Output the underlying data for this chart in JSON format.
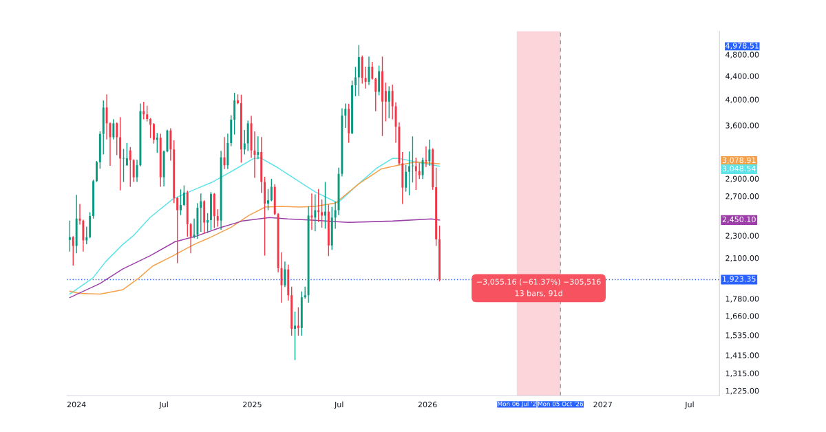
{
  "chart_data": {
    "type": "candlestick",
    "x": [
      "2023-12-18",
      "2023-12-25",
      "2024-01-01",
      "2024-01-08",
      "2024-01-15",
      "2024-01-22",
      "2024-01-29",
      "2024-02-05",
      "2024-02-12",
      "2024-02-19",
      "2024-02-26",
      "2024-03-04",
      "2024-03-11",
      "2024-03-18",
      "2024-03-25",
      "2024-04-01",
      "2024-04-08",
      "2024-04-15",
      "2024-04-22",
      "2024-04-29",
      "2024-05-06",
      "2024-05-13",
      "2024-05-20",
      "2024-05-27",
      "2024-06-03",
      "2024-06-10",
      "2024-06-17",
      "2024-06-24",
      "2024-07-01",
      "2024-07-08",
      "2024-07-15",
      "2024-07-22",
      "2024-07-29",
      "2024-08-05",
      "2024-08-12",
      "2024-08-19",
      "2024-08-26",
      "2024-09-02",
      "2024-09-09",
      "2024-09-16",
      "2024-09-23",
      "2024-09-30",
      "2024-10-07",
      "2024-10-14",
      "2024-10-21",
      "2024-10-28",
      "2024-11-04",
      "2024-11-11",
      "2024-11-18",
      "2024-11-25",
      "2024-12-02",
      "2024-12-09",
      "2024-12-16",
      "2024-12-23",
      "2024-12-30",
      "2025-01-06",
      "2025-01-13",
      "2025-01-20",
      "2025-01-27",
      "2025-02-03",
      "2025-02-10",
      "2025-02-17",
      "2025-02-24",
      "2025-03-03",
      "2025-03-10",
      "2025-03-17",
      "2025-03-24",
      "2025-03-31",
      "2025-04-07",
      "2025-04-14",
      "2025-04-21",
      "2025-04-28",
      "2025-05-05",
      "2025-05-12",
      "2025-05-19",
      "2025-05-26",
      "2025-06-02",
      "2025-06-09",
      "2025-06-16",
      "2025-06-23",
      "2025-06-30",
      "2025-07-07",
      "2025-07-14",
      "2025-07-21",
      "2025-07-28",
      "2025-08-04",
      "2025-08-11",
      "2025-08-18",
      "2025-08-25",
      "2025-09-01",
      "2025-09-08",
      "2025-09-15",
      "2025-09-22",
      "2025-09-29",
      "2025-10-06",
      "2025-10-13",
      "2025-10-20",
      "2025-10-27",
      "2025-11-03",
      "2025-11-10",
      "2025-11-17",
      "2025-11-24",
      "2025-12-01",
      "2025-12-08",
      "2025-12-15",
      "2025-12-22",
      "2025-12-29",
      "2026-01-05",
      "2026-01-12",
      "2026-01-19",
      "2026-01-26"
    ],
    "ohlc": [
      [
        2260,
        2440,
        2160,
        2285
      ],
      [
        2285,
        2290,
        2040,
        2205
      ],
      [
        2205,
        2710,
        2145,
        2465
      ],
      [
        2465,
        2610,
        2410,
        2445
      ],
      [
        2445,
        2450,
        2160,
        2255
      ],
      [
        2255,
        2380,
        2225,
        2285
      ],
      [
        2285,
        2525,
        2280,
        2490
      ],
      [
        2490,
        2880,
        2470,
        2870
      ],
      [
        2870,
        3110,
        2865,
        3100
      ],
      [
        3100,
        3505,
        3025,
        3475
      ],
      [
        3475,
        3975,
        3205,
        3870
      ],
      [
        3870,
        4075,
        3405,
        3630
      ],
      [
        3630,
        3635,
        3060,
        3430
      ],
      [
        3430,
        3685,
        3405,
        3630
      ],
      [
        3630,
        3635,
        3195,
        3430
      ],
      [
        3430,
        3715,
        2770,
        3145
      ],
      [
        3145,
        3265,
        2865,
        3150
      ],
      [
        3060,
        3345,
        3060,
        3150
      ],
      [
        3250,
        3290,
        2810,
        3125
      ],
      [
        3125,
        3130,
        2865,
        2915
      ],
      [
        2915,
        3125,
        2865,
        3060
      ],
      [
        3060,
        3925,
        3055,
        3815
      ],
      [
        3815,
        3955,
        3695,
        3765
      ],
      [
        3765,
        3890,
        3665,
        3695
      ],
      [
        3695,
        3700,
        3425,
        3610
      ],
      [
        3620,
        3625,
        3350,
        3395
      ],
      [
        3395,
        3485,
        3225,
        3425
      ],
      [
        3425,
        3475,
        2810,
        2915
      ],
      [
        2915,
        3245,
        2815,
        3240
      ],
      [
        3240,
        3530,
        3235,
        3525
      ],
      [
        3525,
        3550,
        3125,
        3265
      ],
      [
        3265,
        3380,
        2630,
        2680
      ],
      [
        2680,
        2685,
        2060,
        2550
      ],
      [
        2550,
        2770,
        2505,
        2605
      ],
      [
        2605,
        2815,
        2600,
        2740
      ],
      [
        2740,
        2755,
        2295,
        2410
      ],
      [
        2410,
        2415,
        2145,
        2290
      ],
      [
        2290,
        2460,
        2280,
        2310
      ],
      [
        2310,
        2620,
        2275,
        2575
      ],
      [
        2575,
        2725,
        2340,
        2645
      ],
      [
        2645,
        2650,
        2325,
        2425
      ],
      [
        2425,
        2515,
        2330,
        2450
      ],
      [
        2450,
        2740,
        2360,
        2725
      ],
      [
        2725,
        2730,
        2375,
        2490
      ],
      [
        2490,
        2555,
        2390,
        2445
      ],
      [
        2445,
        3240,
        2360,
        3160
      ],
      [
        3160,
        3425,
        3020,
        3060
      ],
      [
        3060,
        3475,
        3020,
        3350
      ],
      [
        3350,
        3745,
        3315,
        3685
      ],
      [
        3685,
        4100,
        3475,
        3985
      ],
      [
        3985,
        4075,
        3930,
        3940
      ],
      [
        3940,
        4070,
        3100,
        3265
      ],
      [
        3265,
        3525,
        3205,
        3345
      ],
      [
        3345,
        3665,
        3250,
        3630
      ],
      [
        3630,
        3735,
        3160,
        3250
      ],
      [
        3250,
        3505,
        2915,
        3195
      ],
      [
        3195,
        3435,
        3145,
        3230
      ],
      [
        3230,
        3425,
        2740,
        2860
      ],
      [
        2860,
        2915,
        2125,
        2620
      ],
      [
        2620,
        2775,
        2555,
        2655
      ],
      [
        2655,
        2890,
        2650,
        2805
      ],
      [
        2805,
        2830,
        2505,
        2510
      ],
      [
        2510,
        2515,
        1985,
        2015
      ],
      [
        2015,
        2145,
        1755,
        1880
      ],
      [
        1880,
        2065,
        1870,
        2005
      ],
      [
        2005,
        2040,
        1770,
        1805
      ],
      [
        1805,
        1865,
        1535,
        1575
      ],
      [
        1575,
        1685,
        1390,
        1595
      ],
      [
        1595,
        1715,
        1535,
        1580
      ],
      [
        1580,
        1830,
        1535,
        1790
      ],
      [
        1790,
        1865,
        1785,
        1805
      ],
      [
        1805,
        2585,
        1755,
        2495
      ],
      [
        2495,
        2725,
        2360,
        2475
      ],
      [
        2475,
        2715,
        2345,
        2550
      ],
      [
        2550,
        2775,
        2435,
        2530
      ],
      [
        2530,
        2660,
        2380,
        2495
      ],
      [
        2495,
        2855,
        2370,
        2535
      ],
      [
        2535,
        2605,
        2120,
        2210
      ],
      [
        2210,
        2580,
        2175,
        2475
      ],
      [
        2475,
        2635,
        2370,
        2550
      ],
      [
        2550,
        3025,
        2505,
        2955
      ],
      [
        2955,
        3850,
        2930,
        3745
      ],
      [
        3745,
        3925,
        3570,
        3850
      ],
      [
        3850,
        3920,
        3360,
        3485
      ],
      [
        3485,
        4310,
        3480,
        4235
      ],
      [
        4235,
        4555,
        4060,
        4375
      ],
      [
        4375,
        4978.51,
        4070,
        4750
      ],
      [
        4750,
        4770,
        4275,
        4365
      ],
      [
        4365,
        4560,
        4190,
        4295
      ],
      [
        4295,
        4750,
        4250,
        4570
      ],
      [
        4570,
        4650,
        4345,
        4350
      ],
      [
        4350,
        4360,
        3820,
        4125
      ],
      [
        4125,
        4580,
        4075,
        4485
      ],
      [
        4485,
        4750,
        3455,
        3965
      ],
      [
        4140,
        4275,
        3665,
        3965
      ],
      [
        3965,
        4210,
        3715,
        4140
      ],
      [
        4140,
        4240,
        3695,
        3890
      ],
      [
        3890,
        3945,
        3360,
        3580
      ],
      [
        3580,
        3635,
        3070,
        3085
      ],
      [
        3085,
        3225,
        2620,
        2795
      ],
      [
        2795,
        3060,
        2755,
        2980
      ],
      [
        2980,
        3230,
        2715,
        3050
      ],
      [
        3050,
        3435,
        2860,
        3055
      ],
      [
        3050,
        3150,
        2775,
        2990
      ],
      [
        2990,
        3085,
        2900,
        2940
      ],
      [
        2940,
        3150,
        2900,
        3125
      ],
      [
        3125,
        3300,
        3045,
        3110
      ],
      [
        3110,
        3390,
        3060,
        3265
      ],
      [
        3265,
        3275,
        2775,
        2800
      ],
      [
        2800,
        3025,
        2210,
        2265
      ],
      [
        2265,
        2390,
        1915,
        1923.35
      ]
    ],
    "colors": [
      "#089981",
      "#f23645",
      "#089981",
      "#f23645",
      "#f23645",
      "#089981",
      "#089981",
      "#089981",
      "#089981",
      "#089981",
      "#089981",
      "#f23645",
      "#f23645",
      "#089981",
      "#f23645",
      "#f23645",
      "#089981",
      "#089981",
      "#f23645",
      "#f23645",
      "#089981",
      "#089981",
      "#f23645",
      "#f23645",
      "#f23645",
      "#f23645",
      "#089981",
      "#f23645",
      "#089981",
      "#089981",
      "#f23645",
      "#f23645",
      "#f23645",
      "#089981",
      "#089981",
      "#f23645",
      "#f23645",
      "#089981",
      "#089981",
      "#089981",
      "#f23645",
      "#089981",
      "#089981",
      "#f23645",
      "#f23645",
      "#089981",
      "#f23645",
      "#089981",
      "#089981",
      "#089981",
      "#f23645",
      "#f23645",
      "#089981",
      "#089981",
      "#f23645",
      "#f23645",
      "#089981",
      "#f23645",
      "#f23645",
      "#089981",
      "#089981",
      "#f23645",
      "#f23645",
      "#f23645",
      "#089981",
      "#f23645",
      "#f23645",
      "#089981",
      "#f23645",
      "#089981",
      "#089981",
      "#089981",
      "#f23645",
      "#089981",
      "#f23645",
      "#f23645",
      "#089981",
      "#f23645",
      "#089981",
      "#089981",
      "#089981",
      "#089981",
      "#089981",
      "#f23645",
      "#089981",
      "#089981",
      "#089981",
      "#f23645",
      "#f23645",
      "#089981",
      "#f23645",
      "#f23645",
      "#089981",
      "#f23645",
      "#f23645",
      "#089981",
      "#f23645",
      "#f23645",
      "#f23645",
      "#f23645",
      "#089981",
      "#089981",
      "#089981",
      "#f23645",
      "#f23645",
      "#089981",
      "#f23645",
      "#089981",
      "#f23645",
      "#f23645",
      "#f23645"
    ],
    "series": [
      {
        "type": "line",
        "color": "#5fe3ea",
        "x": [
          "2023-12-18",
          "2024-02-04",
          "2024-03-01",
          "2024-04-06",
          "2024-04-30",
          "2024-06-02",
          "2024-07-20",
          "2024-09-05",
          "2024-10-10",
          "2024-11-18",
          "2025-01-04",
          "2025-01-18",
          "2025-02-20",
          "2025-03-30",
          "2025-05-12",
          "2025-06-28",
          "2025-08-10",
          "2025-09-17",
          "2025-10-20",
          "2025-11-03",
          "2025-12-07",
          "2026-01-26"
        ],
        "values": [
          1814,
          1936,
          2066,
          2217,
          2306,
          2475,
          2670,
          2779,
          2859,
          2983,
          3147,
          3155,
          3042,
          2900,
          2748,
          2627,
          2835,
          3025,
          3147,
          3147,
          3103,
          3048.54
        ]
      },
      {
        "type": "line",
        "color": "#f5a04a",
        "x": [
          "2023-12-18",
          "2024-01-07",
          "2024-02-19",
          "2024-04-06",
          "2024-05-10",
          "2024-06-07",
          "2024-07-20",
          "2024-09-01",
          "2024-10-01",
          "2024-11-18",
          "2024-12-25",
          "2025-01-28",
          "2025-03-02",
          "2025-04-09",
          "2025-05-12",
          "2025-06-24",
          "2025-08-10",
          "2025-09-27",
          "2025-10-30",
          "2025-12-07",
          "2026-01-26"
        ],
        "values": [
          1835,
          1819,
          1814,
          1845,
          1936,
          2031,
          2119,
          2217,
          2274,
          2379,
          2497,
          2583,
          2590,
          2583,
          2590,
          2627,
          2835,
          3017,
          3059,
          3103,
          3078.91
        ]
      },
      {
        "type": "line",
        "color": "#9c3fa8",
        "x": [
          "2023-12-18",
          "2024-02-19",
          "2024-04-06",
          "2024-06-02",
          "2024-07-24",
          "2024-09-05",
          "2024-10-25",
          "2024-12-11",
          "2025-02-06",
          "2025-03-16",
          "2025-05-12",
          "2025-07-18",
          "2025-10-20",
          "2026-01-09",
          "2026-01-26"
        ],
        "values": [
          1788,
          1893,
          2008,
          2119,
          2243,
          2293,
          2373,
          2440,
          2475,
          2461,
          2447,
          2427,
          2440,
          2461,
          2450.1
        ]
      }
    ],
    "xlim": [
      "2023-12-12",
      "2027-09-01"
    ],
    "xticks": [
      {
        "value": "2024-01-01",
        "label": "2024"
      },
      {
        "value": "2024-07-01",
        "label": "Jul"
      },
      {
        "value": "2025-01-01",
        "label": "2025"
      },
      {
        "value": "2025-07-01",
        "label": "Jul"
      },
      {
        "value": "2026-01-01",
        "label": "2026"
      },
      {
        "value": "2026-07-06",
        "label": "Mon 06 Jul '2"
      },
      {
        "value": "2026-10-05",
        "label": "Mon 05 Oct '26"
      },
      {
        "value": "2027-01-01",
        "label": "2027"
      },
      {
        "value": "2027-07-01",
        "label": "Jul"
      }
    ],
    "log": true,
    "ylim": [
      1200,
      5280
    ],
    "yticks": [
      {
        "value": 1225,
        "label": "1,225.00"
      },
      {
        "value": 1315,
        "label": "1,315.00"
      },
      {
        "value": 1415,
        "label": "1,415.00"
      },
      {
        "value": 1535,
        "label": "1,535.00"
      },
      {
        "value": 1660,
        "label": "1,660.00"
      },
      {
        "value": 1780,
        "label": "1,780.00"
      },
      {
        "value": 2100,
        "label": "2,100.00"
      },
      {
        "value": 2300,
        "label": "2,300.00"
      },
      {
        "value": 2700,
        "label": "2,700.00"
      },
      {
        "value": 2900,
        "label": "2,900.00"
      },
      {
        "value": 3600,
        "label": "3,600.00"
      },
      {
        "value": 4000,
        "label": "4,000.00"
      },
      {
        "value": 4400,
        "label": "4,400.00"
      },
      {
        "value": 4800,
        "label": "4,800.00"
      },
      {
        "value": 4978.51,
        "label": "4,978.51"
      }
    ],
    "ref_lines": [
      {
        "axis": "y",
        "value": 1923.35,
        "label": "1,923.35",
        "color": "#2962ff",
        "line_style": "dotted"
      },
      {
        "axis": "x",
        "value": "2026-10-05",
        "color": "#9e9e9e",
        "line_style": "dashed"
      }
    ],
    "bands": [
      {
        "axis": "x",
        "from": "2026-07-06",
        "to": "2026-10-05",
        "color": "#fbd5d9"
      }
    ],
    "annotations": [
      "−3,055.16 (−61.37%) −305,516",
      "13 bars, 91d",
      "3,048.54",
      "3,078.91",
      "2,450.10"
    ],
    "grid": false,
    "legend": false
  }
}
